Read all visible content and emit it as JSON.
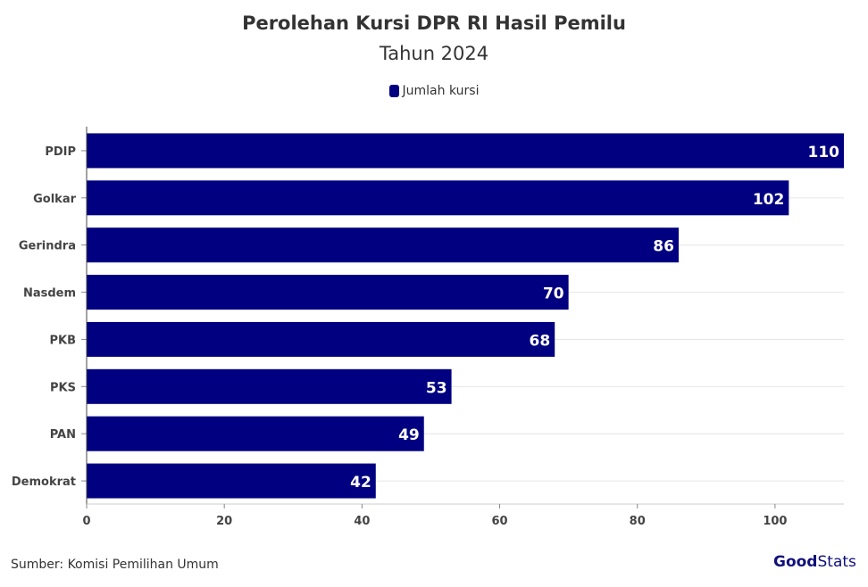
{
  "chart_data": {
    "type": "bar",
    "orientation": "horizontal",
    "title": "Perolehan Kursi DPR RI Hasil Pemilu",
    "subtitle": "Tahun 2024",
    "categories": [
      "PDIP",
      "Golkar",
      "Gerindra",
      "Nasdem",
      "PKB",
      "PKS",
      "PAN",
      "Demokrat"
    ],
    "series": [
      {
        "name": "Jumlah kursi",
        "values": [
          110,
          102,
          86,
          70,
          68,
          53,
          49,
          42
        ],
        "color": "#000080"
      }
    ],
    "xlim": [
      0,
      110
    ],
    "xticks": [
      0,
      20,
      40,
      60,
      80,
      100
    ],
    "grid": true,
    "legend": "top",
    "data_labels": true
  },
  "footer": {
    "source": "Sumber: Komisi Pemilihan Umum",
    "logo_good": "Good",
    "logo_stats": "Stats"
  }
}
